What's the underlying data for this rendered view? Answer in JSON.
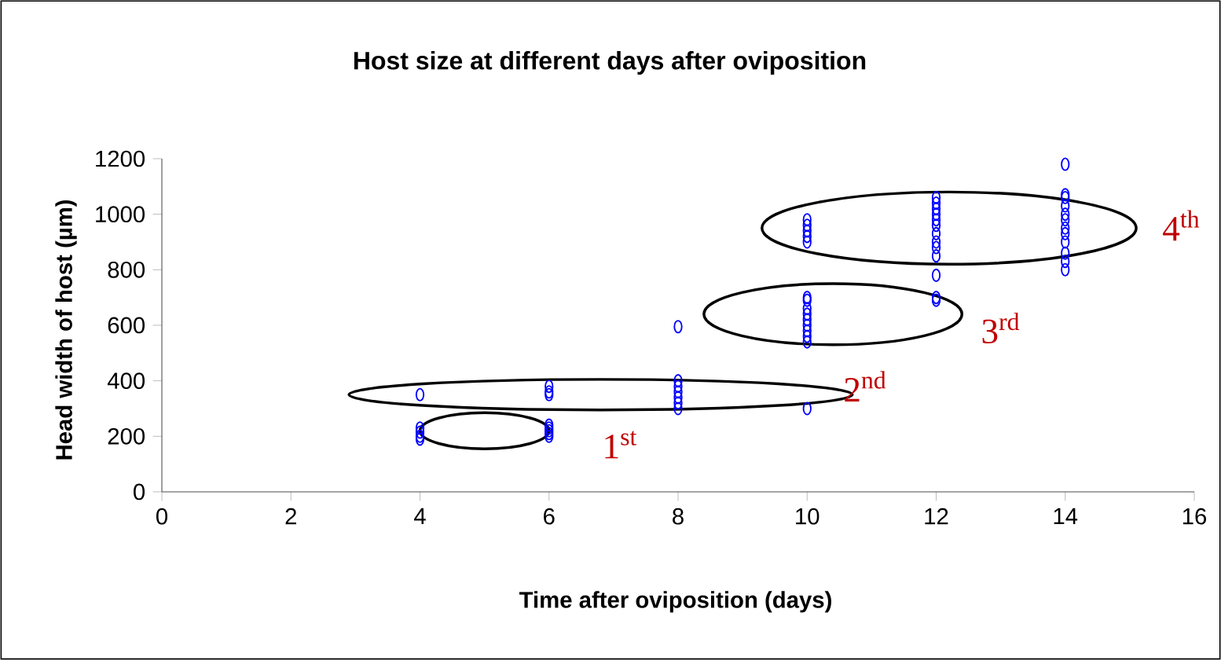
{
  "chart_data": {
    "type": "scatter",
    "title": "Host size at different days after oviposition",
    "xlabel": "Time after oviposition (days)",
    "ylabel": "Head width of host (µm)",
    "x": [
      4,
      4,
      4,
      4,
      4,
      6,
      6,
      6,
      6,
      6,
      6,
      6,
      6,
      8,
      8,
      8,
      8,
      8,
      8,
      8,
      10,
      10,
      10,
      10,
      10,
      10,
      10,
      10,
      10,
      10,
      10,
      10,
      10,
      10,
      10,
      12,
      12,
      12,
      12,
      12,
      12,
      12,
      12,
      12,
      12,
      12,
      12,
      12,
      14,
      14,
      14,
      14,
      14,
      14,
      14,
      14,
      14,
      14,
      14,
      14
    ],
    "values": [
      350,
      230,
      215,
      200,
      190,
      380,
      360,
      350,
      240,
      230,
      220,
      210,
      200,
      595,
      400,
      380,
      360,
      340,
      320,
      300,
      300,
      540,
      560,
      580,
      600,
      620,
      640,
      660,
      690,
      700,
      900,
      920,
      940,
      960,
      980,
      690,
      700,
      780,
      850,
      880,
      900,
      930,
      960,
      980,
      1000,
      1020,
      1040,
      1060,
      800,
      830,
      860,
      900,
      930,
      950,
      980,
      1000,
      1030,
      1060,
      1070,
      1180
    ],
    "color": "#0000ff",
    "marker": "circle",
    "xlim": [
      0,
      16
    ],
    "ylim": [
      0,
      1200
    ],
    "xticks": [
      0,
      2,
      4,
      6,
      8,
      10,
      12,
      14,
      16
    ],
    "yticks": [
      0,
      200,
      400,
      600,
      800,
      1000,
      1200
    ],
    "grid": false,
    "legend": false,
    "annotations": [
      "1$^{st}$",
      "2$^{nd}$",
      "3$^{rd}$",
      "4$^{th}$"
    ]
  }
}
